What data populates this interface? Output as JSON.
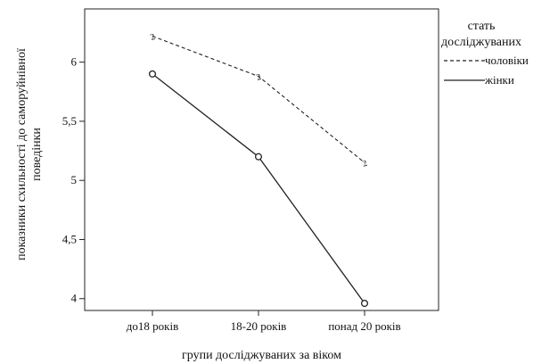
{
  "chart_data": {
    "type": "line",
    "title": "",
    "xlabel": "групи досліджуваних за віком",
    "ylabel": "показники схильності до саморуйнівної поведінки",
    "ylabel_lines": [
      "показники схильності до саморуйнівної",
      "поведінки"
    ],
    "categories": [
      "до18 років",
      "18-20 років",
      "понад 20 років"
    ],
    "ylim": [
      3.9,
      6.45
    ],
    "yticks": [
      4,
      4.5,
      5,
      5.5,
      6
    ],
    "ytick_labels": [
      "4",
      "4,5",
      "5",
      "5,5",
      "6"
    ],
    "grid": false,
    "legend": {
      "title_lines": [
        "стать",
        "досліджуваних"
      ],
      "placement": "right"
    },
    "series": [
      {
        "name": "чоловіки",
        "style": "dashed",
        "marker_label": "2",
        "values": [
          6.22,
          5.88,
          5.15
        ]
      },
      {
        "name": "жінки",
        "style": "solid",
        "marker": "circle",
        "values": [
          5.9,
          5.2,
          3.96
        ]
      }
    ],
    "colors": {
      "line": "#222222",
      "axis": "#222222"
    }
  }
}
